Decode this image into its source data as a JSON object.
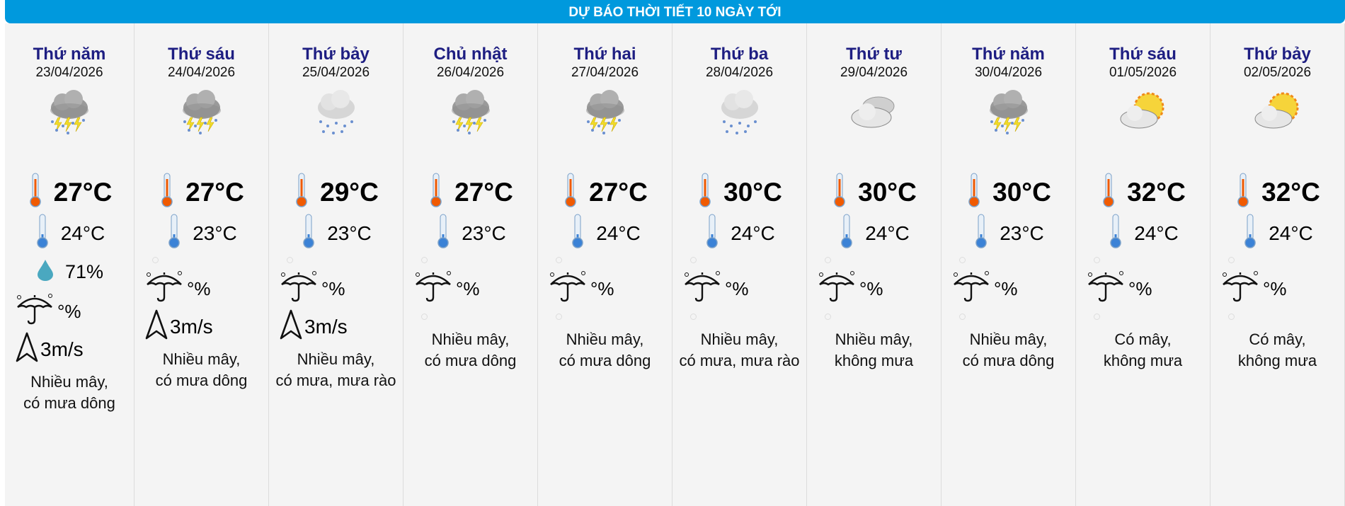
{
  "header": {
    "title": "DỰ BÁO THỜI TIẾT 10 NGÀY TỚI"
  },
  "colors": {
    "header_bg": "#0099dd",
    "day_name": "#1e1e82",
    "background": "#f4f4f4"
  },
  "days": [
    {
      "day": "Thứ năm",
      "date": "23/04/2026",
      "icon": "thunderstorm-icon",
      "max": "27°C",
      "min": "24°C",
      "humidity": "71%",
      "rain": "°%",
      "wind": "3m/s",
      "desc1": "Nhiều mây,",
      "desc2": "có mưa dông"
    },
    {
      "day": "Thứ sáu",
      "date": "24/04/2026",
      "icon": "thunderstorm-icon",
      "max": "27°C",
      "min": "23°C",
      "humidity": null,
      "rain": "°%",
      "wind": "3m/s",
      "desc1": "Nhiều mây,",
      "desc2": "có mưa dông"
    },
    {
      "day": "Thứ bảy",
      "date": "25/04/2026",
      "icon": "rain-icon",
      "max": "29°C",
      "min": "23°C",
      "humidity": null,
      "rain": "°%",
      "wind": "3m/s",
      "desc1": "Nhiều mây,",
      "desc2": "có mưa, mưa rào"
    },
    {
      "day": "Chủ nhật",
      "date": "26/04/2026",
      "icon": "thunderstorm-icon",
      "max": "27°C",
      "min": "23°C",
      "humidity": null,
      "rain": "°%",
      "wind": null,
      "desc1": "Nhiều mây,",
      "desc2": "có mưa dông"
    },
    {
      "day": "Thứ hai",
      "date": "27/04/2026",
      "icon": "thunderstorm-icon",
      "max": "27°C",
      "min": "24°C",
      "humidity": null,
      "rain": "°%",
      "wind": null,
      "desc1": "Nhiều mây,",
      "desc2": "có mưa dông"
    },
    {
      "day": "Thứ ba",
      "date": "28/04/2026",
      "icon": "rain-icon",
      "max": "30°C",
      "min": "24°C",
      "humidity": null,
      "rain": "°%",
      "wind": null,
      "desc1": "Nhiều mây,",
      "desc2": "có mưa, mưa rào"
    },
    {
      "day": "Thứ tư",
      "date": "29/04/2026",
      "icon": "cloudy-icon",
      "max": "30°C",
      "min": "24°C",
      "humidity": null,
      "rain": "°%",
      "wind": null,
      "desc1": "Nhiều mây,",
      "desc2": "không mưa"
    },
    {
      "day": "Thứ năm",
      "date": "30/04/2026",
      "icon": "thunderstorm-icon",
      "max": "30°C",
      "min": "23°C",
      "humidity": null,
      "rain": "°%",
      "wind": null,
      "desc1": "Nhiều mây,",
      "desc2": "có mưa dông"
    },
    {
      "day": "Thứ sáu",
      "date": "01/05/2026",
      "icon": "partly-cloudy-icon",
      "max": "32°C",
      "min": "24°C",
      "humidity": null,
      "rain": "°%",
      "wind": null,
      "desc1": "Có mây,",
      "desc2": "không mưa"
    },
    {
      "day": "Thứ bảy",
      "date": "02/05/2026",
      "icon": "partly-cloudy-icon",
      "max": "32°C",
      "min": "24°C",
      "humidity": null,
      "rain": "°%",
      "wind": null,
      "desc1": "Có mây,",
      "desc2": "không mưa"
    }
  ]
}
